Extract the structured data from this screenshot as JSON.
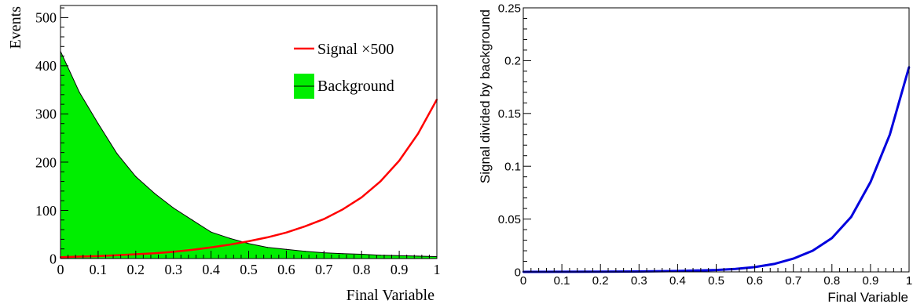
{
  "chart_data": [
    {
      "type": "area",
      "title": "",
      "xlabel": "Final Variable",
      "ylabel": "Events",
      "xlim": [
        0,
        1
      ],
      "ylim": [
        0,
        525
      ],
      "x_ticks": [
        0,
        0.1,
        0.2,
        0.3,
        0.4,
        0.5,
        0.6,
        0.7,
        0.8,
        0.9,
        1
      ],
      "x_tick_labels": [
        "0",
        "0.1",
        "0.2",
        "0.3",
        "0.4",
        "0.5",
        "0.6",
        "0.7",
        "0.8",
        "0.9",
        "1"
      ],
      "y_ticks": [
        0,
        100,
        200,
        300,
        400,
        500
      ],
      "y_tick_labels": [
        "0",
        "100",
        "200",
        "300",
        "400",
        "500"
      ],
      "legend_position": "top-right",
      "grid": false,
      "series": [
        {
          "name": "Signal ×500",
          "style": "line",
          "color": "#ff0000",
          "x": [
            0,
            0.05,
            0.1,
            0.15,
            0.2,
            0.25,
            0.3,
            0.35,
            0.4,
            0.45,
            0.5,
            0.55,
            0.6,
            0.65,
            0.7,
            0.75,
            0.8,
            0.85,
            0.9,
            0.95,
            1
          ],
          "values": [
            3,
            4,
            5,
            7,
            9,
            11,
            14,
            18,
            23,
            29,
            36,
            44,
            54,
            67,
            82,
            102,
            127,
            160,
            203,
            259,
            330
          ]
        },
        {
          "name": "Background",
          "style": "filled-hist",
          "color": "#00ee00",
          "x": [
            0,
            0.05,
            0.1,
            0.15,
            0.2,
            0.25,
            0.3,
            0.35,
            0.4,
            0.45,
            0.5,
            0.55,
            0.6,
            0.65,
            0.7,
            0.75,
            0.8,
            0.85,
            0.9,
            0.95,
            1
          ],
          "values": [
            430,
            345,
            280,
            218,
            170,
            135,
            105,
            80,
            55,
            42,
            31,
            23,
            19,
            15,
            12,
            10,
            9,
            7,
            6,
            5,
            4
          ]
        }
      ]
    },
    {
      "type": "line",
      "title": "",
      "xlabel": "Final Variable",
      "ylabel": "Signal divided by background",
      "xlim": [
        0,
        1
      ],
      "ylim": [
        0,
        0.25
      ],
      "x_ticks": [
        0,
        0.1,
        0.2,
        0.3,
        0.4,
        0.5,
        0.6,
        0.7,
        0.8,
        0.9,
        1
      ],
      "x_tick_labels": [
        "0",
        "0.1",
        "0.2",
        "0.3",
        "0.4",
        "0.5",
        "0.6",
        "0.7",
        "0.8",
        "0.9",
        "1"
      ],
      "y_ticks": [
        0,
        0.05,
        0.1,
        0.15,
        0.2,
        0.25
      ],
      "y_tick_labels": [
        "0",
        "0.05",
        "0.1",
        "0.15",
        "0.2",
        "0.25"
      ],
      "grid": false,
      "series": [
        {
          "name": "",
          "color": "#0000dd",
          "x": [
            0,
            0.1,
            0.2,
            0.3,
            0.4,
            0.5,
            0.55,
            0.6,
            0.65,
            0.7,
            0.75,
            0.8,
            0.85,
            0.9,
            0.95,
            1
          ],
          "values": [
            0,
            0.0001,
            0.0002,
            0.0004,
            0.0008,
            0.0018,
            0.0028,
            0.0045,
            0.0075,
            0.0125,
            0.02,
            0.032,
            0.052,
            0.085,
            0.13,
            0.194
          ]
        }
      ]
    }
  ]
}
